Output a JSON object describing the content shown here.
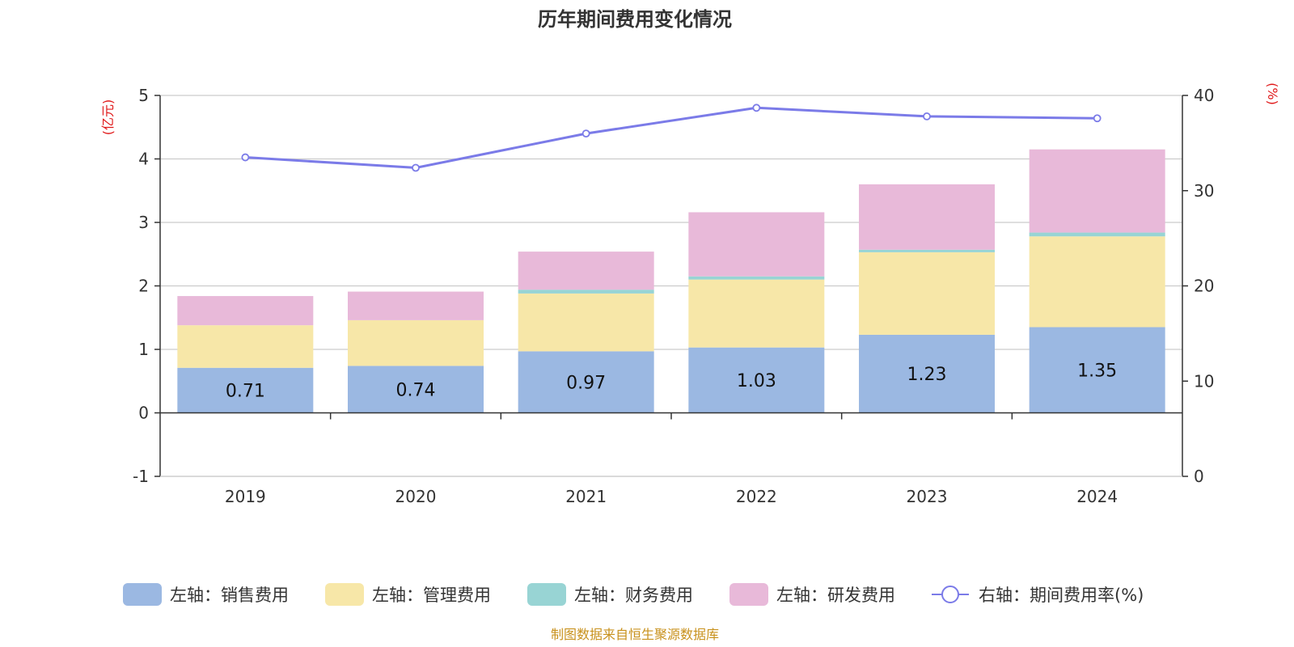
{
  "chart_data": {
    "type": "bar",
    "title": "历年期间费用变化情况",
    "categories": [
      "2019",
      "2020",
      "2021",
      "2022",
      "2023",
      "2024"
    ],
    "y_left": {
      "unit": "(亿元)",
      "min": -1,
      "max": 5,
      "ticks": [
        -1,
        0,
        1,
        2,
        3,
        4,
        5
      ]
    },
    "y_right": {
      "unit": "(%)",
      "min": 0,
      "max": 40,
      "ticks": [
        0,
        10,
        20,
        30,
        40
      ]
    },
    "grid": true,
    "legend_position": "bottom",
    "series": [
      {
        "name": "左轴：销售费用",
        "type": "bar",
        "axis": "left",
        "color": "#9bb8e2",
        "values": [
          0.71,
          0.74,
          0.97,
          1.03,
          1.23,
          1.35
        ],
        "labels": [
          "0.71",
          "0.74",
          "0.97",
          "1.03",
          "1.23",
          "1.35"
        ]
      },
      {
        "name": "左轴：管理费用",
        "type": "bar",
        "axis": "left",
        "color": "#f7e7a8",
        "values": [
          0.67,
          0.72,
          0.91,
          1.07,
          1.3,
          1.43
        ]
      },
      {
        "name": "左轴：财务费用",
        "type": "bar",
        "axis": "left",
        "color": "#98d4d4",
        "values": [
          0.0,
          0.0,
          0.06,
          0.05,
          0.04,
          0.06
        ]
      },
      {
        "name": "左轴：研发费用",
        "type": "bar",
        "axis": "left",
        "color": "#e8b9d9",
        "values": [
          0.46,
          0.45,
          0.6,
          1.01,
          1.03,
          1.31
        ]
      },
      {
        "name": "右轴：期间费用率(%)",
        "type": "line",
        "axis": "right",
        "color": "#7b7be8",
        "values": [
          33.5,
          32.4,
          36.0,
          38.7,
          37.8,
          37.6
        ]
      }
    ]
  },
  "footer": {
    "source": "制图数据来自恒生聚源数据库"
  }
}
